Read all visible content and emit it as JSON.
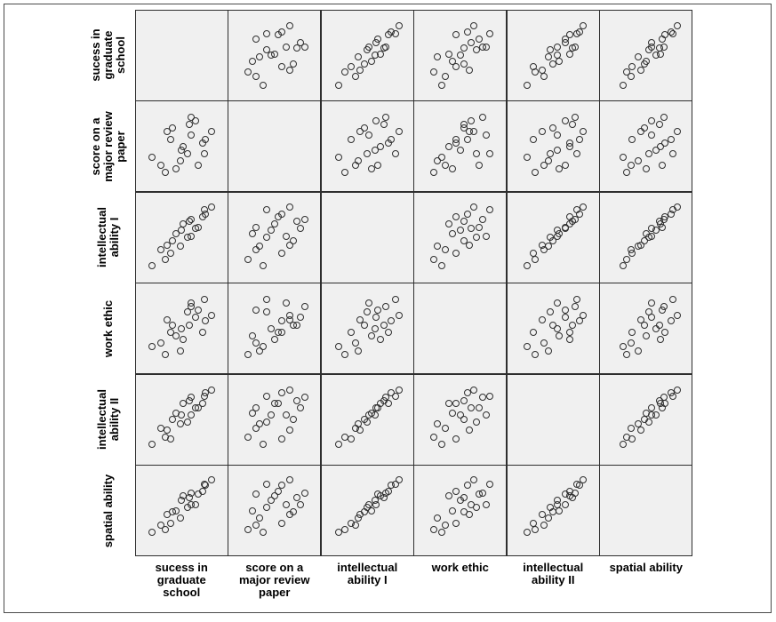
{
  "figure": {
    "colors": {
      "page-bg": "#ffffff",
      "frame-line": "#4a4a4a",
      "grid-line": "#2e2e2e",
      "cell-bg": "#f0f0f0",
      "point-stroke": "#2f2f2f",
      "label-color": "#000000"
    }
  },
  "chart_data": {
    "type": "scatter",
    "subtype": "scatterplot_matrix",
    "title": "",
    "grid": "off",
    "legend": "none",
    "axes_ticks": "none",
    "diagonal_cells": "empty",
    "matrix_size": 6,
    "n_points_per_cell": 20,
    "plot_padding": 0.09,
    "cell_mapping": "cell at row i, column j plots variable j on x against variable i on y; values are normalized 0-1 positions estimated from the pixels",
    "variables": [
      "sucess in graduate school",
      "score on a major review paper",
      "intellectual ability I",
      "work ethic",
      "intellectual ability II",
      "spatial ability"
    ],
    "axis_label_lines": [
      "sucess in\ngraduate\nschool",
      "score on a\nmajor review\npaper",
      "intellectual\nability I",
      "work ethic",
      "intellectual\nability II",
      "spatial ability"
    ],
    "observations": [
      [
        0.1,
        0.35,
        0.12,
        0.25,
        0.16,
        0.2
      ],
      [
        0.28,
        0.15,
        0.2,
        0.15,
        0.26,
        0.24
      ],
      [
        0.35,
        0.6,
        0.28,
        0.45,
        0.24,
        0.32
      ],
      [
        0.22,
        0.25,
        0.34,
        0.3,
        0.38,
        0.3
      ],
      [
        0.3,
        0.7,
        0.4,
        0.62,
        0.36,
        0.44
      ],
      [
        0.48,
        0.3,
        0.38,
        0.2,
        0.44,
        0.4
      ],
      [
        0.38,
        0.75,
        0.46,
        0.55,
        0.5,
        0.48
      ],
      [
        0.58,
        0.4,
        0.5,
        0.72,
        0.46,
        0.54
      ],
      [
        0.42,
        0.2,
        0.55,
        0.4,
        0.58,
        0.5
      ],
      [
        0.62,
        0.65,
        0.52,
        0.85,
        0.56,
        0.58
      ],
      [
        0.5,
        0.45,
        0.6,
        0.5,
        0.56,
        0.64
      ],
      [
        0.68,
        0.85,
        0.62,
        0.65,
        0.66,
        0.58
      ],
      [
        0.52,
        0.5,
        0.68,
        0.35,
        0.72,
        0.7
      ],
      [
        0.72,
        0.25,
        0.64,
        0.75,
        0.66,
        0.72
      ],
      [
        0.6,
        0.8,
        0.72,
        0.55,
        0.76,
        0.68
      ],
      [
        0.78,
        0.55,
        0.78,
        0.45,
        0.72,
        0.76
      ],
      [
        0.62,
        0.9,
        0.74,
        0.8,
        0.8,
        0.74
      ],
      [
        0.82,
        0.6,
        0.82,
        0.6,
        0.86,
        0.84
      ],
      [
        0.8,
        0.4,
        0.88,
        0.9,
        0.82,
        0.86
      ],
      [
        0.9,
        0.7,
        0.92,
        0.68,
        0.9,
        0.92
      ]
    ]
  }
}
